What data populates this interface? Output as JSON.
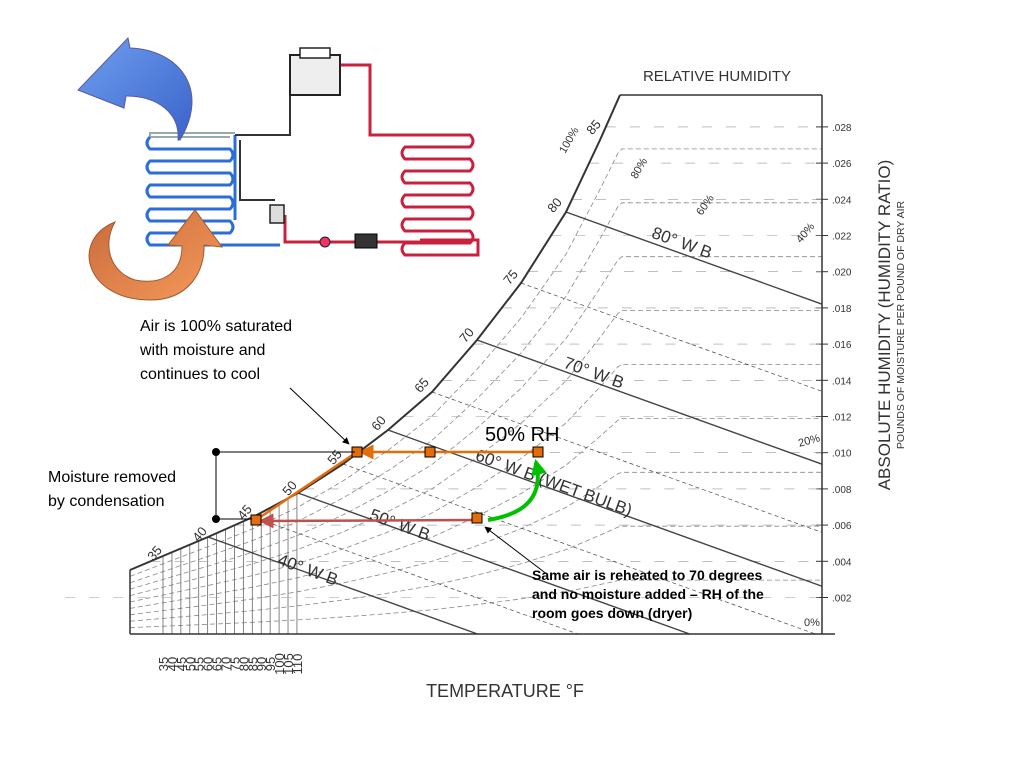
{
  "chart": {
    "title": "RELATIVE HUMIDITY",
    "x_axis_title": "TEMPERATURE °F",
    "y_axis_title": "ABSOLUTE HUMIDITY (HUMIDITY RATIO)",
    "y_axis_subtitle": "POUNDS OF MOISTURE PER POUND OF DRY AIR",
    "temperature_ticks": [
      "35",
      "40",
      "45",
      "50",
      "55",
      "60",
      "65",
      "70",
      "75",
      "80",
      "85",
      "90",
      "95",
      "100",
      "105",
      "110"
    ],
    "humidity_ticks": [
      ".002",
      ".004",
      ".006",
      ".008",
      ".010",
      ".012",
      ".014",
      ".016",
      ".018",
      ".020",
      ".022",
      ".024",
      ".026",
      ".028"
    ],
    "saturation_labels": [
      "35",
      "40",
      "45",
      "50",
      "55",
      "60",
      "65",
      "70",
      "75",
      "80",
      "85"
    ],
    "rh_labels": [
      "100%",
      "80%",
      "60%",
      "40%",
      "20%",
      "0%"
    ],
    "wet_bulb_labels": [
      "80° W B",
      "70° W B",
      "60° W B (WET BULB)",
      "50° W B",
      "40° W B"
    ]
  },
  "annotations": {
    "saturated": [
      "Air is 100% saturated",
      "with moisture and",
      "continues to cool"
    ],
    "condensation": [
      "Moisture removed",
      "by condensation"
    ],
    "rh_point": "50% RH",
    "reheated": [
      "Same air is reheated to 70 degrees",
      "and no moisture added – RH of the",
      "room goes down (dryer)"
    ]
  }
}
